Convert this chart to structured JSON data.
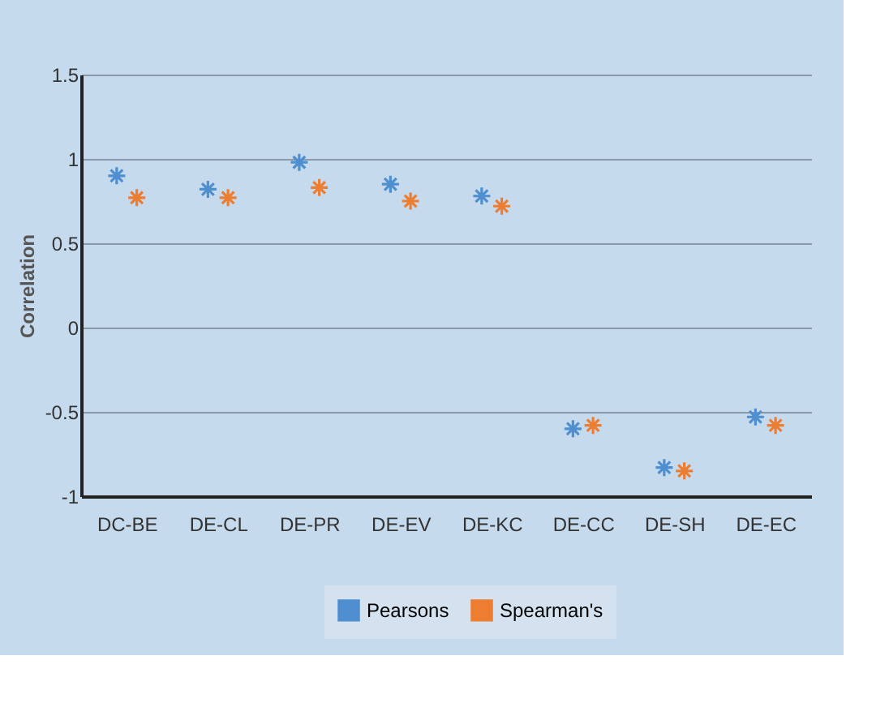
{
  "chart_data": {
    "type": "scatter",
    "ylabel": "Correlation",
    "categories": [
      "DC-BE",
      "DE-CL",
      "DE-PR",
      "DE-EV",
      "DE-KC",
      "DE-CC",
      "DE-SH",
      "DE-EC"
    ],
    "series": [
      {
        "name": "Pearsons",
        "color": "#4f8fd0",
        "values": [
          0.9,
          0.82,
          0.98,
          0.85,
          0.78,
          -0.6,
          -0.83,
          -0.53
        ]
      },
      {
        "name": "Spearman's",
        "color": "#ed7d31",
        "values": [
          0.77,
          0.77,
          0.83,
          0.75,
          0.72,
          -0.58,
          -0.85,
          -0.58
        ]
      }
    ],
    "ylim": [
      -1,
      1.5
    ],
    "yticks": [
      -1,
      -0.5,
      0,
      0.5,
      1,
      1.5
    ],
    "grid": "y",
    "legend": "bottom",
    "marker": "cross"
  }
}
